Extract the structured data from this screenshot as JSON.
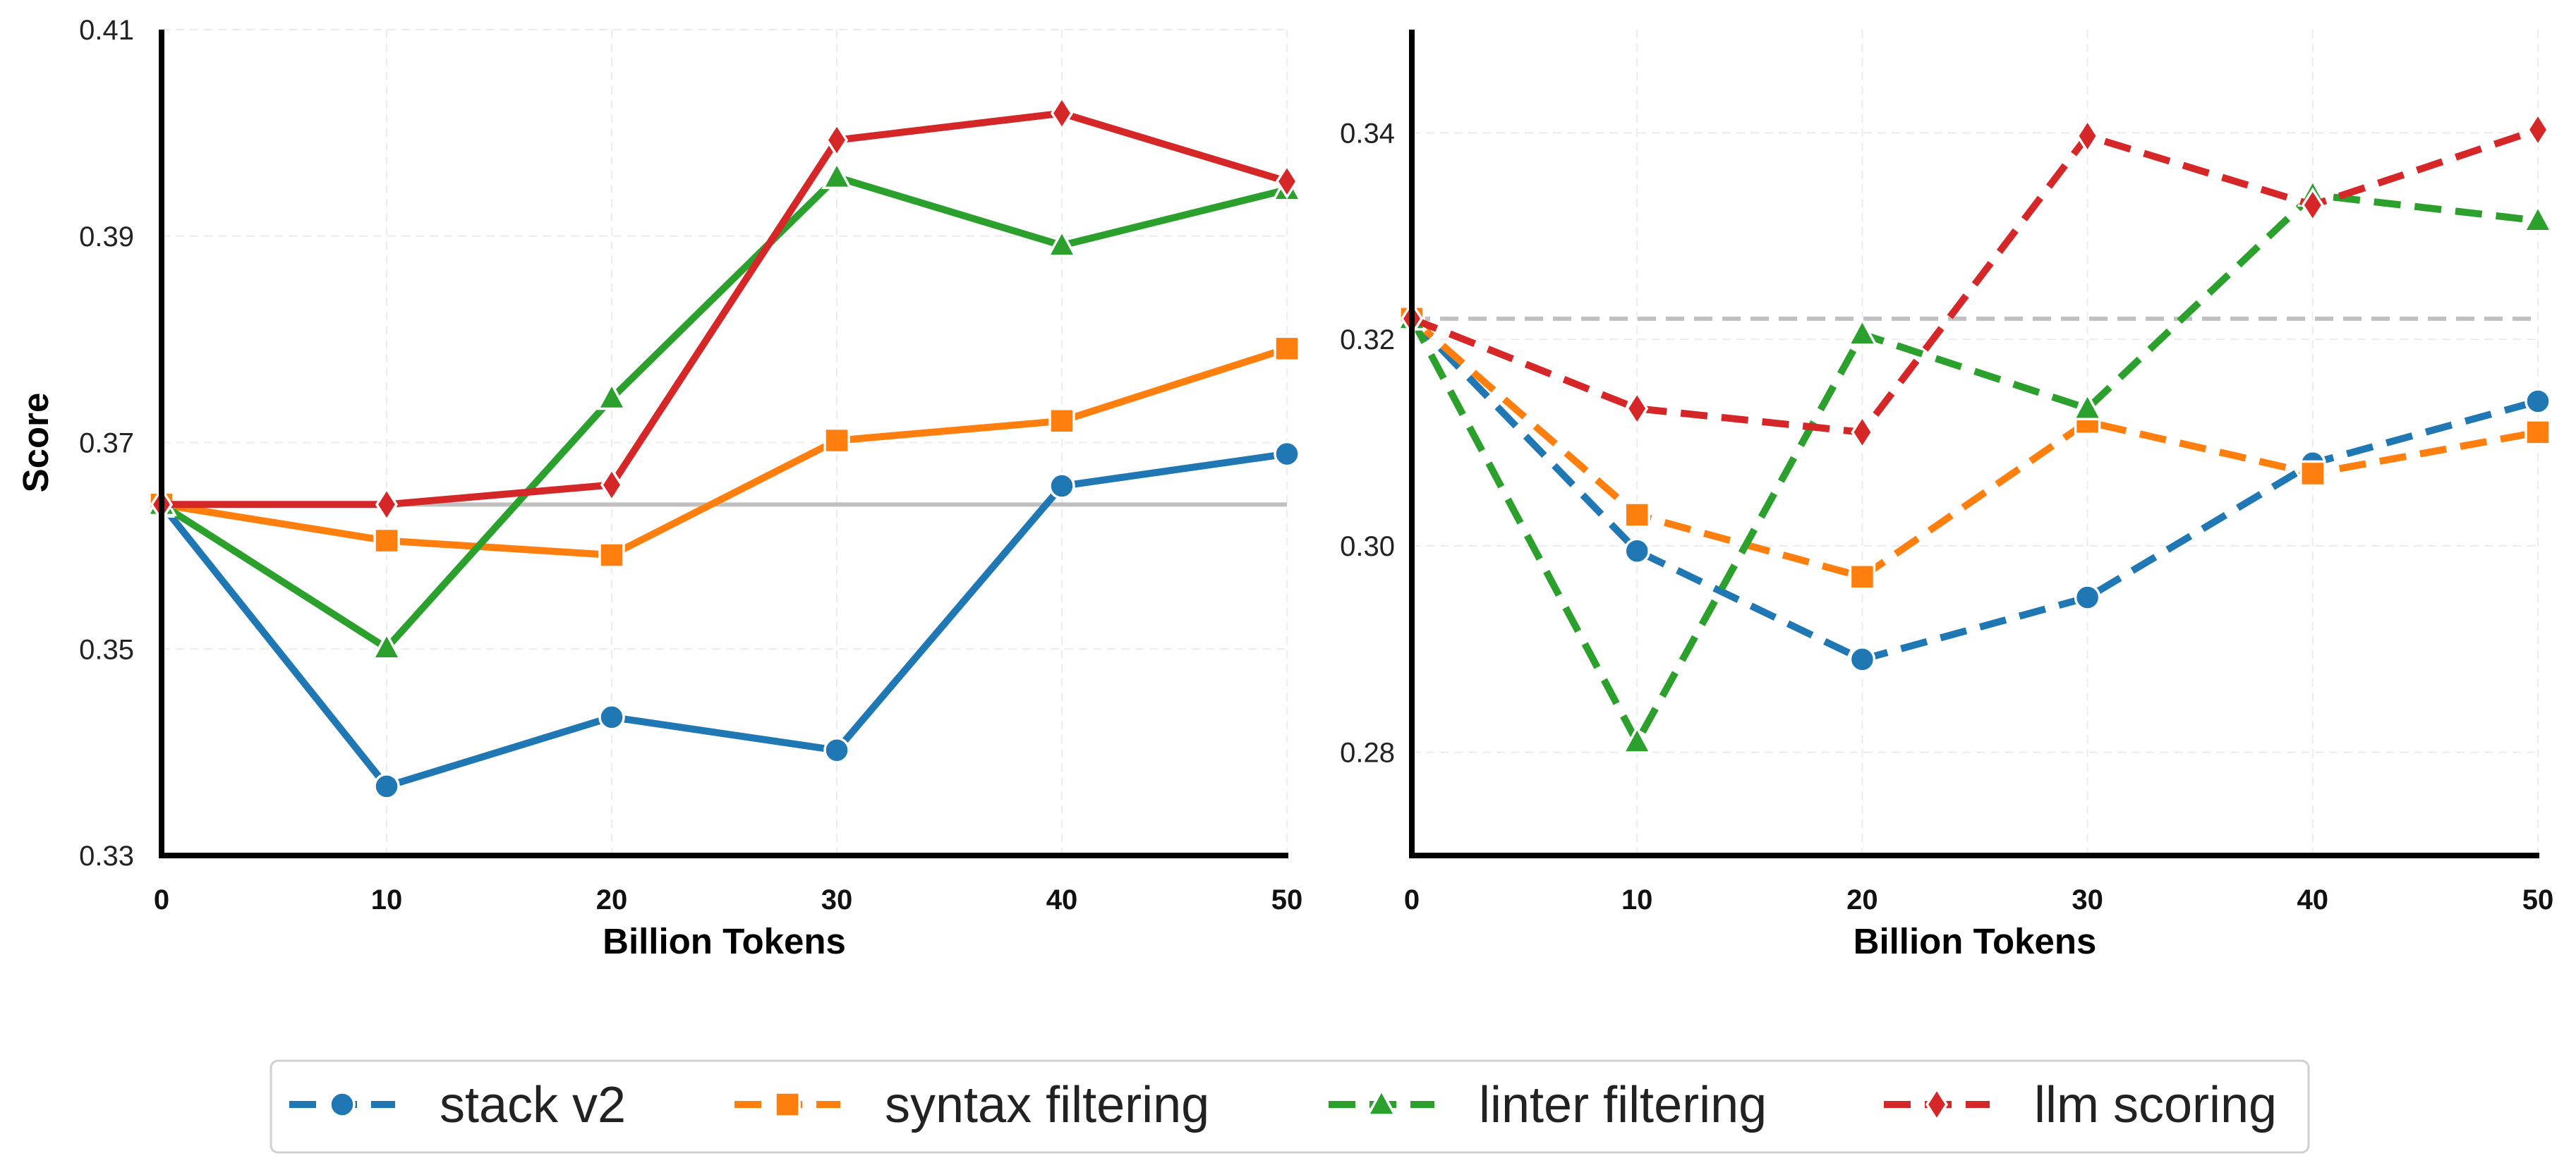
{
  "legend": {
    "entries": [
      {
        "label": "stack v2",
        "marker": "circle"
      },
      {
        "label": "syntax filtering",
        "marker": "square"
      },
      {
        "label": "linter filtering",
        "marker": "triangle"
      },
      {
        "label": "llm scoring",
        "marker": "diamond"
      }
    ]
  },
  "colors": {
    "stack v2": "#1f77b4",
    "syntax filtering": "#ff7f0e",
    "linter filtering": "#2ca02c",
    "llm scoring": "#d62728",
    "baseline": "#c0c0c0",
    "grid": "#ececec",
    "axis": "#000000"
  },
  "chart_data": [
    {
      "type": "line",
      "line_style": "solid",
      "xlabel": "Billion Tokens",
      "ylabel": "Score",
      "x": [
        0,
        10,
        20,
        30,
        40,
        50
      ],
      "xticks": [
        "0",
        "10",
        "20",
        "30",
        "40",
        "50"
      ],
      "xlim": [
        0,
        50
      ],
      "ylim": [
        0.33,
        0.41
      ],
      "yticks": [
        "0.33",
        "0.35",
        "0.37",
        "0.39",
        "0.41"
      ],
      "grid": true,
      "baseline": 0.364,
      "series": [
        {
          "name": "stack v2",
          "values": [
            0.364,
            0.3367,
            0.3434,
            0.3402,
            0.3658,
            0.3689
          ]
        },
        {
          "name": "syntax filtering",
          "values": [
            0.364,
            0.3605,
            0.3591,
            0.3702,
            0.3721,
            0.3791
          ]
        },
        {
          "name": "linter filtering",
          "values": [
            0.364,
            0.3501,
            0.3743,
            0.3957,
            0.3891,
            0.3945
          ]
        },
        {
          "name": "llm scoring",
          "values": [
            0.364,
            0.364,
            0.3659,
            0.3993,
            0.4019,
            0.3953
          ]
        }
      ]
    },
    {
      "type": "line",
      "line_style": "dashed",
      "xlabel": "Billion Tokens",
      "ylabel": "",
      "x": [
        0,
        10,
        20,
        30,
        40,
        50
      ],
      "xticks": [
        "0",
        "10",
        "20",
        "30",
        "40",
        "50"
      ],
      "xlim": [
        0,
        50
      ],
      "ylim": [
        0.27,
        0.35
      ],
      "yticks": [
        "0.28",
        "0.30",
        "0.32",
        "0.34"
      ],
      "grid": true,
      "baseline": 0.322,
      "series": [
        {
          "name": "stack v2",
          "values": [
            0.322,
            0.2995,
            0.289,
            0.295,
            0.308,
            0.314
          ]
        },
        {
          "name": "syntax filtering",
          "values": [
            0.322,
            0.303,
            0.297,
            0.312,
            0.307,
            0.311
          ]
        },
        {
          "name": "linter filtering",
          "values": [
            0.322,
            0.281,
            0.3205,
            0.3133,
            0.334,
            0.3315
          ]
        },
        {
          "name": "llm scoring",
          "values": [
            0.322,
            0.3133,
            0.311,
            0.3397,
            0.333,
            0.3403
          ]
        }
      ]
    }
  ]
}
